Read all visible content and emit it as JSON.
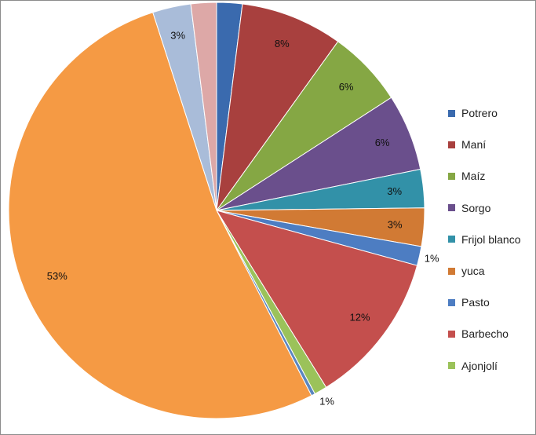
{
  "chart_data": {
    "type": "pie",
    "slices": [
      {
        "name": "Potrero",
        "value": 2,
        "label": "2%",
        "color": "#3A6AAE"
      },
      {
        "name": "Maní",
        "value": 8,
        "label": "8%",
        "color": "#A8403E"
      },
      {
        "name": "Maíz",
        "value": 6,
        "label": "6%",
        "color": "#85A744"
      },
      {
        "name": "Sorgo",
        "value": 6,
        "label": "6%",
        "color": "#6A4F8C"
      },
      {
        "name": "Frijol blanco",
        "value": 3,
        "label": "3%",
        "color": "#3291A8"
      },
      {
        "name": "yuca",
        "value": 3,
        "label": "3%",
        "color": "#D17A34"
      },
      {
        "name": "Pasto",
        "value": 1.5,
        "label": "1%",
        "color": "#4D7DC2"
      },
      {
        "name": "Barbecho",
        "value": 12,
        "label": "12%",
        "color": "#C44F4D"
      },
      {
        "name": "Ajonjolí",
        "value": 1,
        "label": "1%",
        "color": "#9BC25A"
      },
      {
        "name": "",
        "value": 0.3,
        "label": "",
        "color": "#5B86C0"
      },
      {
        "name": "",
        "value": 53,
        "label": "53%",
        "color": "#F59A44"
      },
      {
        "name": "",
        "value": 3,
        "label": "3%",
        "color": "#A9BCD9"
      },
      {
        "name": "",
        "value": 2,
        "label": "2%",
        "color": "#DDA8A7"
      }
    ],
    "legend": [
      "Potrero",
      "Maní",
      "Maíz",
      "Sorgo",
      "Frijol blanco",
      "yuca",
      "Pasto",
      "Barbecho",
      "Ajonjolí"
    ],
    "legend_position": "right",
    "start_angle": "12 o'clock, clockwise"
  }
}
